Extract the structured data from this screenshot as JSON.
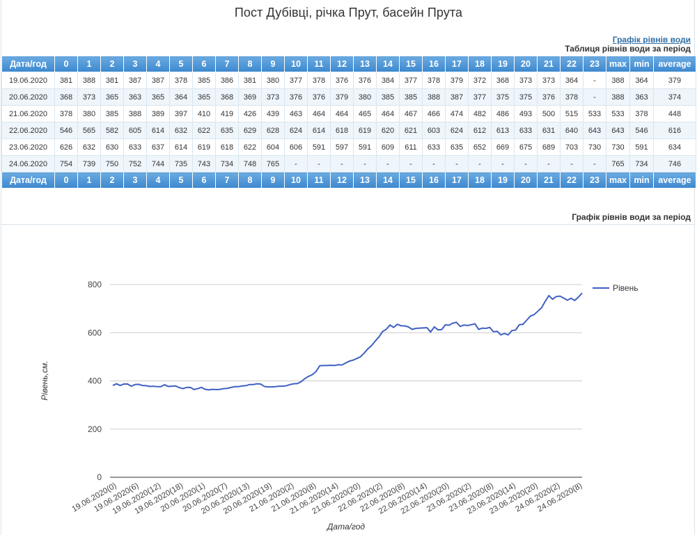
{
  "title": "Пост Дубівці, річка Прут, басейн Прута",
  "links": {
    "chart_link": "Графік рівнів води"
  },
  "table": {
    "caption": "Таблиця рівнів води за період",
    "header": [
      "Дата/год",
      "0",
      "1",
      "2",
      "3",
      "4",
      "5",
      "6",
      "7",
      "8",
      "9",
      "10",
      "11",
      "12",
      "13",
      "14",
      "15",
      "16",
      "17",
      "18",
      "19",
      "20",
      "21",
      "22",
      "23",
      "max",
      "min",
      "average"
    ],
    "rows": [
      [
        "19.06.2020",
        "381",
        "388",
        "381",
        "387",
        "387",
        "378",
        "385",
        "386",
        "381",
        "380",
        "377",
        "378",
        "376",
        "376",
        "384",
        "377",
        "378",
        "379",
        "372",
        "368",
        "373",
        "373",
        "364",
        "-",
        "388",
        "364",
        "379"
      ],
      [
        "20.06.2020",
        "368",
        "373",
        "365",
        "363",
        "365",
        "364",
        "365",
        "368",
        "369",
        "373",
        "376",
        "376",
        "379",
        "380",
        "385",
        "385",
        "388",
        "387",
        "377",
        "375",
        "375",
        "376",
        "378",
        "-",
        "388",
        "363",
        "374"
      ],
      [
        "21.06.2020",
        "378",
        "380",
        "385",
        "388",
        "389",
        "397",
        "410",
        "419",
        "426",
        "439",
        "463",
        "464",
        "464",
        "465",
        "464",
        "467",
        "466",
        "474",
        "482",
        "486",
        "493",
        "500",
        "515",
        "533",
        "533",
        "378",
        "448"
      ],
      [
        "22.06.2020",
        "546",
        "565",
        "582",
        "605",
        "614",
        "632",
        "622",
        "635",
        "629",
        "628",
        "624",
        "614",
        "618",
        "619",
        "620",
        "621",
        "603",
        "624",
        "612",
        "613",
        "633",
        "631",
        "640",
        "643",
        "643",
        "546",
        "616"
      ],
      [
        "23.06.2020",
        "626",
        "632",
        "630",
        "633",
        "637",
        "614",
        "619",
        "618",
        "622",
        "604",
        "606",
        "591",
        "597",
        "591",
        "609",
        "611",
        "633",
        "635",
        "652",
        "669",
        "675",
        "689",
        "703",
        "730",
        "730",
        "591",
        "634"
      ],
      [
        "24.06.2020",
        "754",
        "739",
        "750",
        "752",
        "744",
        "735",
        "743",
        "734",
        "748",
        "765",
        "-",
        "-",
        "-",
        "-",
        "-",
        "-",
        "-",
        "-",
        "-",
        "-",
        "-",
        "-",
        "-",
        "-",
        "765",
        "734",
        "746"
      ]
    ]
  },
  "graph_caption": "Графік рівнів води за період",
  "chart_data": {
    "type": "line",
    "xlabel": "Дата/год",
    "ylabel": "Рівень,см.",
    "ylim": [
      0,
      800
    ],
    "yticks": [
      0,
      200,
      400,
      600,
      800
    ],
    "legend_position": "right",
    "grid": true,
    "colors": {
      "line": "#3f5fc4"
    },
    "x_tick_labels": [
      "19.06.2020(0)",
      "19.06.2020(6)",
      "19.06.2020(12)",
      "19.06.2020(18)",
      "20.06.2020(1)",
      "20.06.2020(7)",
      "20.06.2020(13)",
      "20.06.2020(19)",
      "21.06.2020(2)",
      "21.06.2020(8)",
      "21.06.2020(14)",
      "21.06.2020(20)",
      "22.06.2020(2)",
      "22.06.2020(8)",
      "22.06.2020(14)",
      "22.06.2020(20)",
      "23.06.2020(2)",
      "23.06.2020(8)",
      "23.06.2020(14)",
      "23.06.2020(20)",
      "24.06.2020(2)",
      "24.06.2020(8)"
    ],
    "series": [
      {
        "name": "Рівень",
        "values": [
          381,
          388,
          381,
          387,
          387,
          378,
          385,
          386,
          381,
          380,
          377,
          378,
          376,
          376,
          384,
          377,
          378,
          379,
          372,
          368,
          373,
          373,
          364,
          368,
          373,
          365,
          363,
          365,
          364,
          365,
          368,
          369,
          373,
          376,
          376,
          379,
          380,
          385,
          385,
          388,
          387,
          377,
          375,
          375,
          376,
          378,
          378,
          380,
          385,
          388,
          389,
          397,
          410,
          419,
          426,
          439,
          463,
          464,
          464,
          465,
          464,
          467,
          466,
          474,
          482,
          486,
          493,
          500,
          515,
          533,
          546,
          565,
          582,
          605,
          614,
          632,
          622,
          635,
          629,
          628,
          624,
          614,
          618,
          619,
          620,
          621,
          603,
          624,
          612,
          613,
          633,
          631,
          640,
          643,
          626,
          632,
          630,
          633,
          637,
          614,
          619,
          618,
          622,
          604,
          606,
          591,
          597,
          591,
          609,
          611,
          633,
          635,
          652,
          669,
          675,
          689,
          703,
          730,
          754,
          739,
          750,
          752,
          744,
          735,
          743,
          734,
          748,
          765
        ]
      }
    ]
  }
}
